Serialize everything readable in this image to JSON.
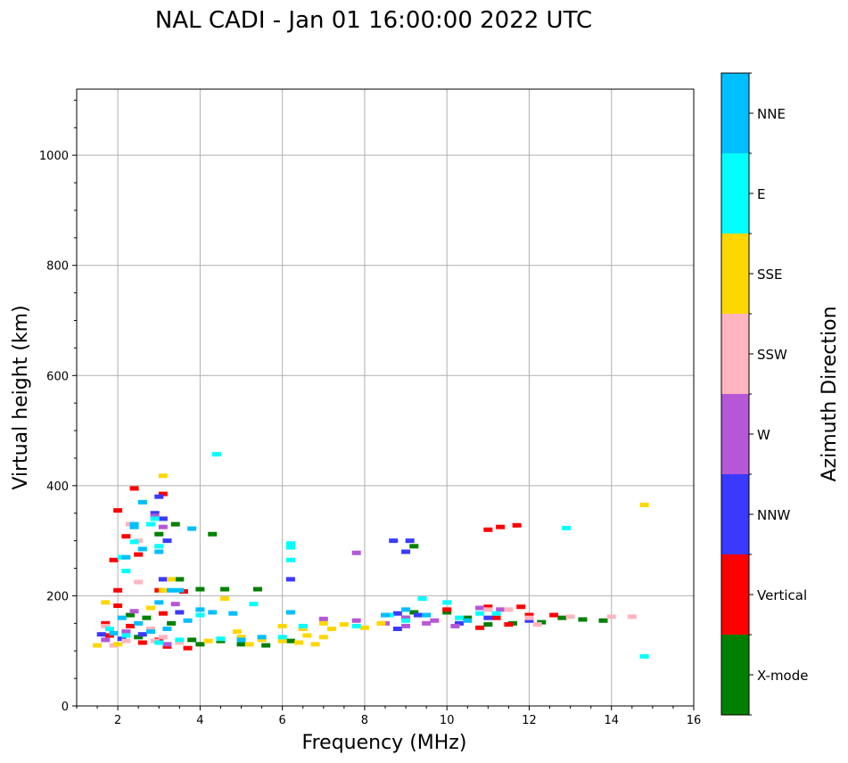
{
  "chart_data": {
    "type": "scatter",
    "title": "NAL CADI - Jan 01 16:00:00 2022 UTC",
    "xlabel": "Frequency (MHz)",
    "ylabel": "Virtual height (km)",
    "xlim": [
      1,
      16
    ],
    "ylim": [
      0,
      1120
    ],
    "xticks": [
      2,
      4,
      6,
      8,
      10,
      12,
      14,
      16
    ],
    "yticks": [
      0,
      200,
      400,
      600,
      800,
      1000
    ],
    "grid": true,
    "colorbar": {
      "label": "Azimuth Direction",
      "categories": [
        {
          "name": "X-mode",
          "color": "#008000"
        },
        {
          "name": "Vertical",
          "color": "#ff0000"
        },
        {
          "name": "NNW",
          "color": "#3a3aff"
        },
        {
          "name": "W",
          "color": "#b557d6"
        },
        {
          "name": "SSW",
          "color": "#ffb5c0"
        },
        {
          "name": "SSE",
          "color": "#ffd700"
        },
        {
          "name": "E",
          "color": "#00ffff"
        },
        {
          "name": "NNE",
          "color": "#00bfff"
        }
      ]
    },
    "series": [
      {
        "name": "X-mode",
        "points": [
          [
            3.4,
            330
          ],
          [
            3.0,
            312
          ],
          [
            4.3,
            312
          ],
          [
            4.0,
            212
          ],
          [
            4.6,
            212
          ],
          [
            5.4,
            212
          ],
          [
            2.3,
            165
          ],
          [
            2.7,
            160
          ],
          [
            3.8,
            120
          ],
          [
            4.5,
            118
          ],
          [
            5.0,
            112
          ],
          [
            5.6,
            110
          ],
          [
            6.2,
            118
          ],
          [
            4.0,
            112
          ],
          [
            2.5,
            125
          ],
          [
            3.3,
            150
          ],
          [
            9.2,
            290
          ],
          [
            9.2,
            170
          ],
          [
            10.0,
            170
          ],
          [
            10.5,
            160
          ],
          [
            11.0,
            148
          ],
          [
            11.6,
            150
          ],
          [
            12.3,
            152
          ],
          [
            12.8,
            160
          ],
          [
            13.3,
            157
          ],
          [
            13.8,
            155
          ],
          [
            9.0,
            160
          ],
          [
            3.5,
            230
          ]
        ]
      },
      {
        "name": "Vertical",
        "points": [
          [
            2.4,
            395
          ],
          [
            3.1,
            385
          ],
          [
            2.0,
            355
          ],
          [
            2.2,
            308
          ],
          [
            2.5,
            275
          ],
          [
            1.9,
            265
          ],
          [
            2.0,
            210
          ],
          [
            3.0,
            210
          ],
          [
            3.6,
            208
          ],
          [
            2.0,
            182
          ],
          [
            3.1,
            168
          ],
          [
            1.7,
            150
          ],
          [
            2.3,
            145
          ],
          [
            1.8,
            128
          ],
          [
            2.6,
            115
          ],
          [
            3.2,
            108
          ],
          [
            3.7,
            105
          ],
          [
            3.0,
            120
          ],
          [
            10.0,
            175
          ],
          [
            11.0,
            320
          ],
          [
            11.3,
            325
          ],
          [
            11.7,
            328
          ],
          [
            11.0,
            180
          ],
          [
            11.8,
            180
          ],
          [
            12.0,
            165
          ],
          [
            11.2,
            160
          ],
          [
            12.6,
            165
          ],
          [
            10.8,
            142
          ],
          [
            11.5,
            148
          ]
        ]
      },
      {
        "name": "NNW",
        "points": [
          [
            2.9,
            350
          ],
          [
            3.0,
            380
          ],
          [
            3.1,
            340
          ],
          [
            3.2,
            300
          ],
          [
            8.7,
            300
          ],
          [
            9.1,
            300
          ],
          [
            9.0,
            280
          ],
          [
            3.1,
            230
          ],
          [
            6.2,
            230
          ],
          [
            3.5,
            170
          ],
          [
            2.6,
            130
          ],
          [
            8.8,
            168
          ],
          [
            9.3,
            165
          ],
          [
            10.3,
            150
          ],
          [
            11.0,
            160
          ],
          [
            12.0,
            155
          ],
          [
            8.8,
            140
          ],
          [
            1.6,
            130
          ],
          [
            2.1,
            122
          ]
        ]
      },
      {
        "name": "W",
        "points": [
          [
            2.9,
            345
          ],
          [
            3.1,
            325
          ],
          [
            7.8,
            278
          ],
          [
            3.4,
            185
          ],
          [
            2.4,
            172
          ],
          [
            7.0,
            158
          ],
          [
            7.8,
            155
          ],
          [
            8.5,
            150
          ],
          [
            9.0,
            145
          ],
          [
            9.5,
            150
          ],
          [
            10.2,
            145
          ],
          [
            10.8,
            178
          ],
          [
            11.3,
            175
          ],
          [
            9.0,
            160
          ],
          [
            9.7,
            155
          ],
          [
            2.2,
            135
          ],
          [
            1.7,
            120
          ],
          [
            3.2,
            112
          ]
        ]
      },
      {
        "name": "SSW",
        "points": [
          [
            2.5,
            300
          ],
          [
            2.3,
            330
          ],
          [
            2.5,
            225
          ],
          [
            2.8,
            140
          ],
          [
            3.1,
            125
          ],
          [
            3.5,
            115
          ],
          [
            1.7,
            145
          ],
          [
            1.9,
            110
          ],
          [
            11.0,
            175
          ],
          [
            11.5,
            175
          ],
          [
            12.0,
            160
          ],
          [
            13.0,
            162
          ],
          [
            14.0,
            162
          ],
          [
            14.5,
            162
          ],
          [
            12.2,
            148
          ],
          [
            2.9,
            118
          ],
          [
            2.2,
            118
          ]
        ]
      },
      {
        "name": "SSE",
        "points": [
          [
            3.1,
            418
          ],
          [
            3.1,
            210
          ],
          [
            3.3,
            230
          ],
          [
            1.7,
            188
          ],
          [
            2.8,
            178
          ],
          [
            4.6,
            195
          ],
          [
            4.9,
            135
          ],
          [
            5.0,
            125
          ],
          [
            5.5,
            120
          ],
          [
            6.0,
            118
          ],
          [
            6.4,
            115
          ],
          [
            6.8,
            112
          ],
          [
            6.0,
            145
          ],
          [
            6.5,
            140
          ],
          [
            7.0,
            150
          ],
          [
            7.2,
            140
          ],
          [
            7.5,
            148
          ],
          [
            6.6,
            128
          ],
          [
            7.0,
            125
          ],
          [
            8.0,
            142
          ],
          [
            8.4,
            150
          ],
          [
            1.5,
            110
          ],
          [
            2.0,
            112
          ],
          [
            14.8,
            365
          ],
          [
            5.2,
            112
          ],
          [
            4.2,
            118
          ]
        ]
      },
      {
        "name": "E",
        "points": [
          [
            4.4,
            457
          ],
          [
            2.9,
            340
          ],
          [
            3.0,
            290
          ],
          [
            2.8,
            330
          ],
          [
            2.1,
            270
          ],
          [
            6.2,
            295
          ],
          [
            6.2,
            288
          ],
          [
            6.2,
            265
          ],
          [
            12.9,
            323
          ],
          [
            9.4,
            195
          ],
          [
            10.0,
            188
          ],
          [
            8.6,
            165
          ],
          [
            9.0,
            155
          ],
          [
            10.3,
            160
          ],
          [
            10.8,
            168
          ],
          [
            11.2,
            168
          ],
          [
            3.5,
            120
          ],
          [
            3.0,
            115
          ],
          [
            4.5,
            122
          ],
          [
            6.0,
            125
          ],
          [
            14.8,
            90
          ],
          [
            1.8,
            140
          ],
          [
            2.2,
            128
          ],
          [
            4.0,
            165
          ],
          [
            2.4,
            298
          ],
          [
            2.2,
            245
          ],
          [
            5.3,
            185
          ],
          [
            6.5,
            145
          ],
          [
            7.8,
            145
          ]
        ]
      },
      {
        "name": "NNE",
        "points": [
          [
            2.6,
            370
          ],
          [
            2.4,
            330
          ],
          [
            2.2,
            270
          ],
          [
            2.4,
            325
          ],
          [
            3.0,
            280
          ],
          [
            3.8,
            322
          ],
          [
            4.0,
            175
          ],
          [
            4.3,
            170
          ],
          [
            4.8,
            168
          ],
          [
            3.7,
            155
          ],
          [
            3.3,
            210
          ],
          [
            2.5,
            150
          ],
          [
            2.8,
            135
          ],
          [
            3.2,
            140
          ],
          [
            5.0,
            120
          ],
          [
            5.5,
            125
          ],
          [
            6.2,
            170
          ],
          [
            8.5,
            165
          ],
          [
            9.0,
            175
          ],
          [
            9.5,
            165
          ],
          [
            10.5,
            155
          ],
          [
            3.0,
            188
          ],
          [
            2.1,
            160
          ],
          [
            1.9,
            132
          ],
          [
            2.6,
            285
          ],
          [
            3.5,
            210
          ]
        ]
      }
    ]
  }
}
